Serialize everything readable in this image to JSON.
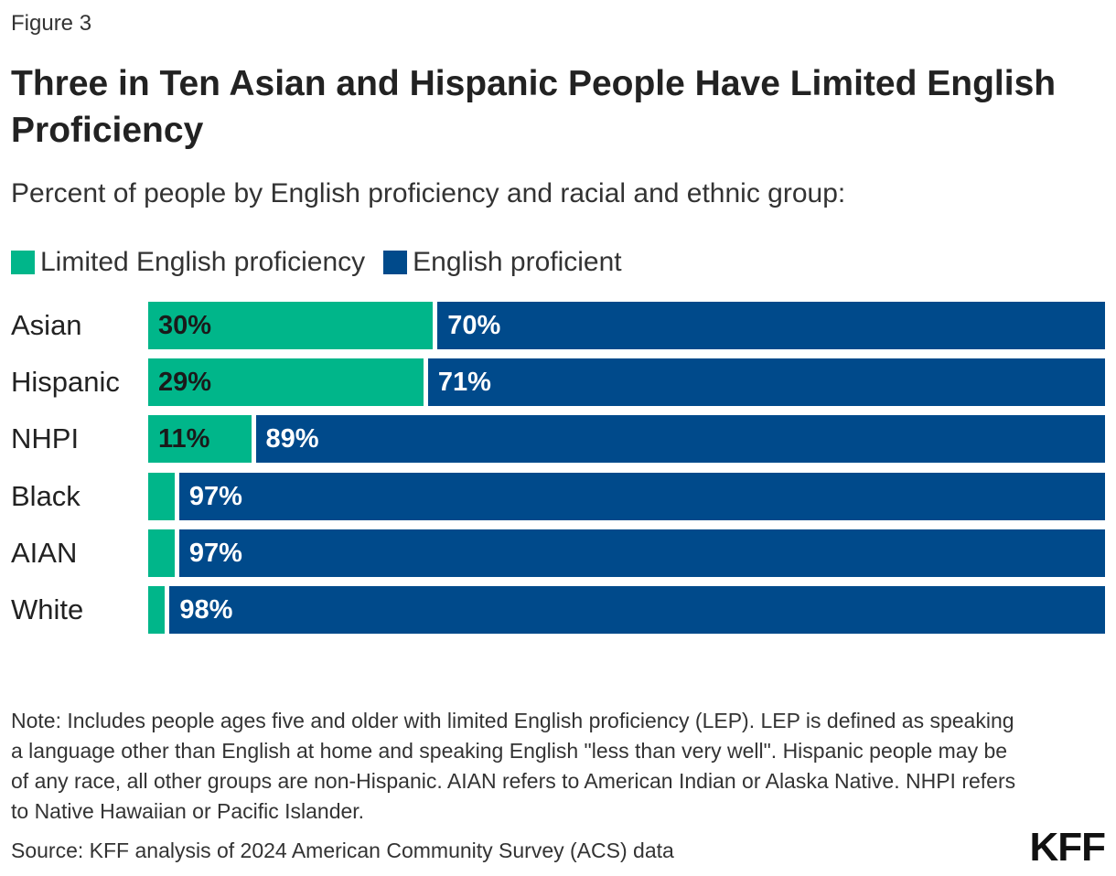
{
  "figure_label": "Figure 3",
  "title": "Three in Ten Asian and Hispanic People Have Limited English Proficiency",
  "subtitle": "Percent of people by English proficiency and racial and ethnic group:",
  "legend": {
    "items": [
      {
        "label": "Limited English proficiency",
        "color": "#00b68a"
      },
      {
        "label": "English proficient",
        "color": "#004a8b"
      }
    ]
  },
  "chart_data": {
    "type": "bar",
    "orientation": "horizontal",
    "stacked": true,
    "categories": [
      "Asian",
      "Hispanic",
      "NHPI",
      "Black",
      "AIAN",
      "White"
    ],
    "series": [
      {
        "name": "Limited English proficiency",
        "color": "#00b68a",
        "values": [
          30,
          29,
          11,
          3,
          3,
          2
        ],
        "labels": [
          "30%",
          "29%",
          "11%",
          "",
          "",
          ""
        ]
      },
      {
        "name": "English proficient",
        "color": "#004a8b",
        "values": [
          70,
          71,
          89,
          97,
          97,
          98
        ],
        "labels": [
          "70%",
          "71%",
          "89%",
          "97%",
          "97%",
          "98%"
        ]
      }
    ],
    "xlim": [
      0,
      100
    ],
    "grid": false,
    "legend_position": "top-left"
  },
  "note": "Note: Includes people ages five and older with limited English proficiency (LEP). LEP is defined as speaking a language other than English at home and speaking English \"less than very well\". Hispanic people may be of any race, all other groups are non-Hispanic. AIAN refers to American Indian or Alaska Native. NHPI refers to Native Hawaiian or Pacific Islander.",
  "source": "Source: KFF analysis of 2024 American Community Survey (ACS) data",
  "logo_text": "KFF"
}
